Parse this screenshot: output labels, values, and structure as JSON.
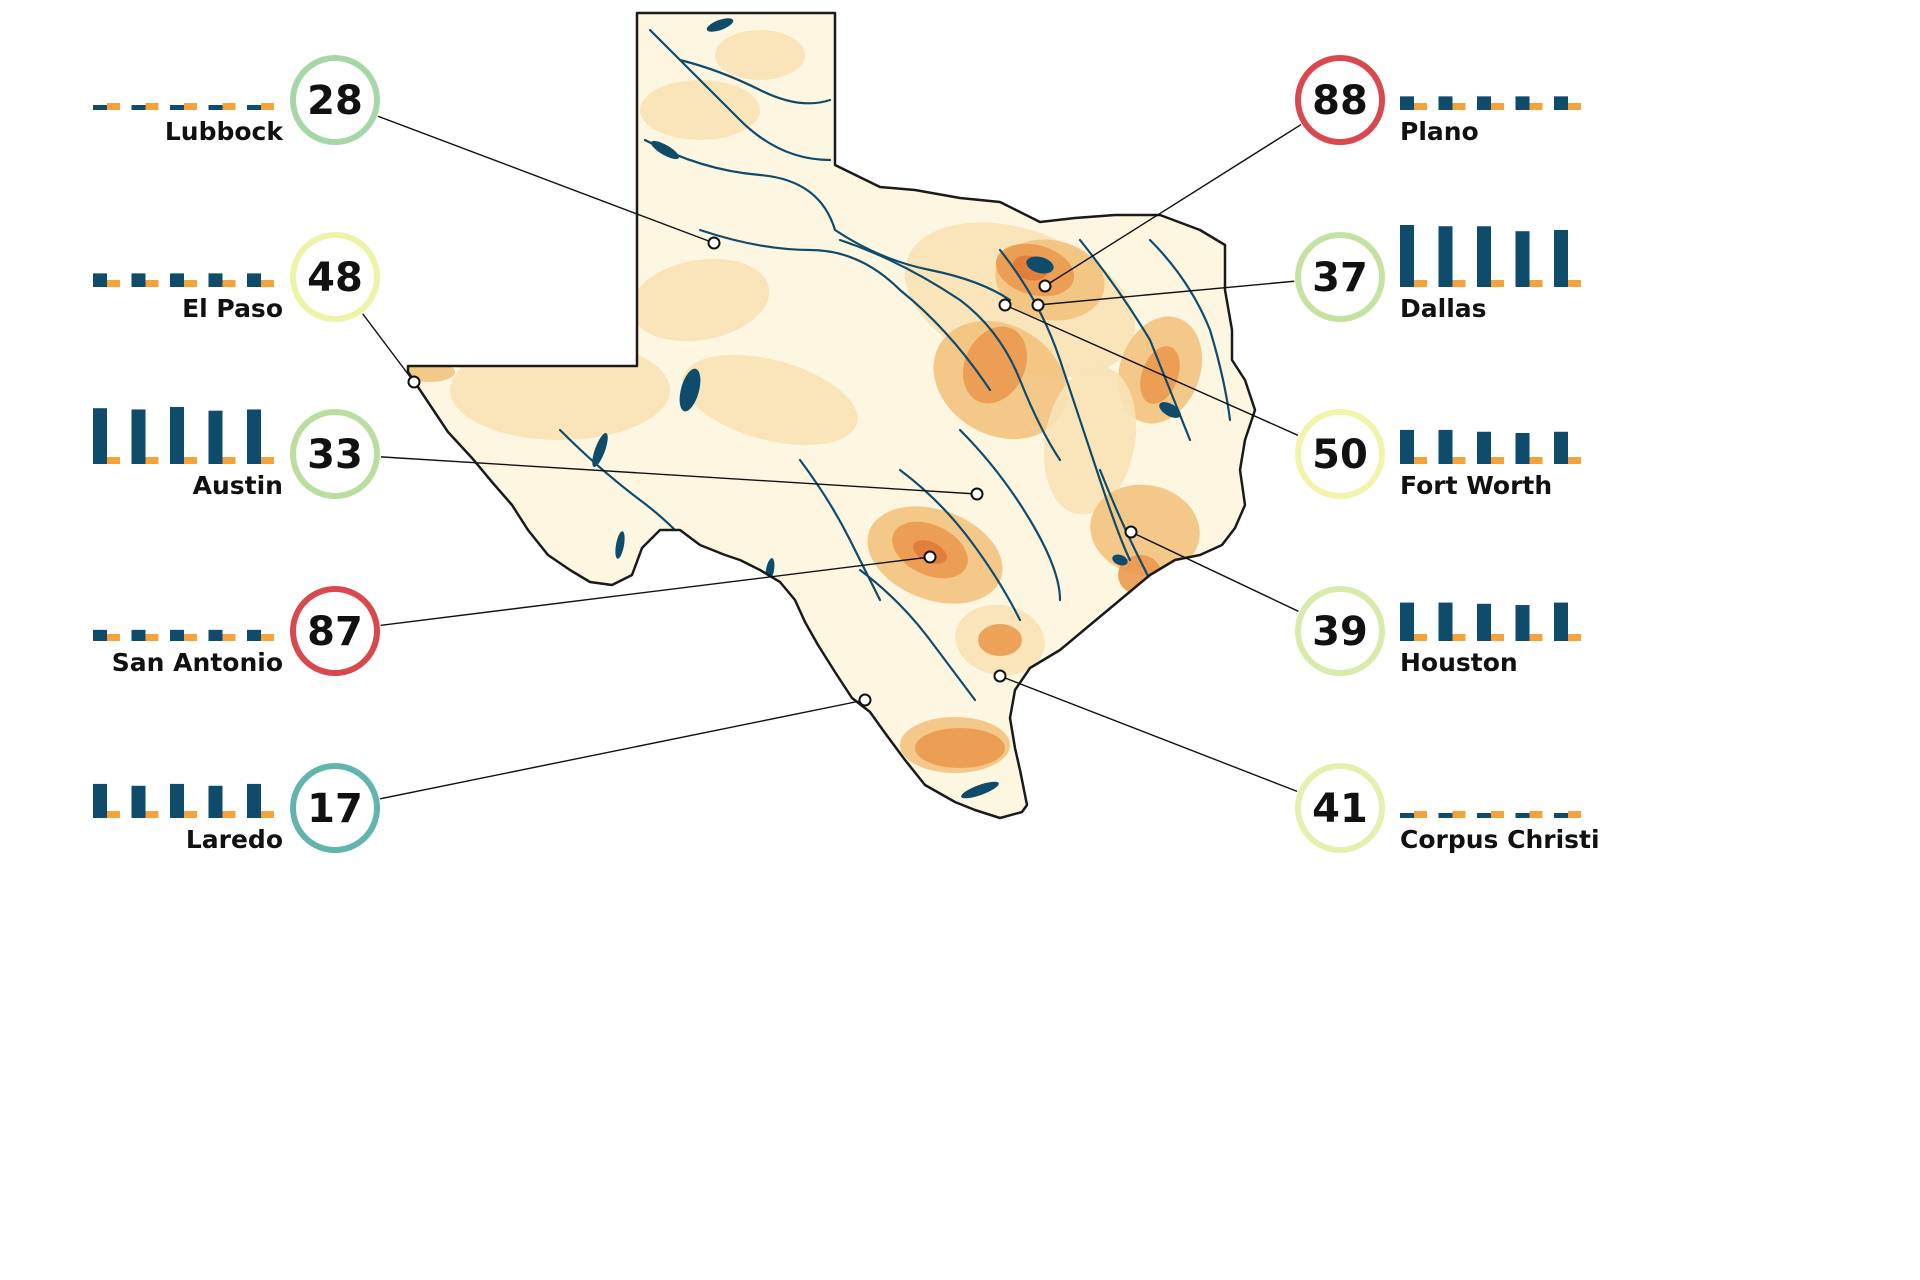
{
  "colors": {
    "state_fill": "#fdf7e2",
    "water": "#0f4c6b",
    "outline": "#1a1a1a",
    "bar_primary": "#0f4c6b",
    "bar_secondary": "#f5a23a",
    "heat_light": "#f9e2b6",
    "heat_mid": "#f3c27e",
    "heat_hot": "#eb9a4f",
    "heat_core": "#e07a3a",
    "leader": "#111111"
  },
  "cities": [
    {
      "name": "Lubbock",
      "score": 28,
      "ring": "#a7d7a7",
      "bars": [
        0.06,
        0.06,
        0.06,
        0.06,
        0.06
      ],
      "side": "left"
    },
    {
      "name": "El Paso",
      "score": 48,
      "ring": "#eef3a8",
      "bars": [
        0.22,
        0.22,
        0.22,
        0.22,
        0.22
      ],
      "side": "left"
    },
    {
      "name": "Austin",
      "score": 33,
      "ring": "#b9dea0",
      "bars": [
        0.9,
        0.88,
        0.92,
        0.86,
        0.88
      ],
      "side": "left"
    },
    {
      "name": "San Antonio",
      "score": 87,
      "ring": "#d9474f",
      "bars": [
        0.18,
        0.18,
        0.18,
        0.18,
        0.18
      ],
      "side": "left"
    },
    {
      "name": "Laredo",
      "score": 17,
      "ring": "#62b5ad",
      "bars": [
        0.55,
        0.52,
        0.55,
        0.52,
        0.55
      ],
      "side": "left"
    },
    {
      "name": "Plano",
      "score": 88,
      "ring": "#d9474f",
      "bars": [
        0.22,
        0.22,
        0.22,
        0.22,
        0.22
      ],
      "side": "right"
    },
    {
      "name": "Dallas",
      "score": 37,
      "ring": "#c4e2a1",
      "bars": [
        1.0,
        0.98,
        0.98,
        0.9,
        0.92
      ],
      "side": "right"
    },
    {
      "name": "Fort Worth",
      "score": 50,
      "ring": "#f2f4ab",
      "bars": [
        0.55,
        0.55,
        0.52,
        0.5,
        0.52
      ],
      "side": "right"
    },
    {
      "name": "Houston",
      "score": 39,
      "ring": "#d8ebaa",
      "bars": [
        0.62,
        0.62,
        0.6,
        0.58,
        0.62
      ],
      "side": "right"
    },
    {
      "name": "Corpus Christi",
      "score": 41,
      "ring": "#e4f0ad",
      "bars": [
        0.06,
        0.06,
        0.06,
        0.06,
        0.06
      ],
      "side": "right"
    }
  ]
}
